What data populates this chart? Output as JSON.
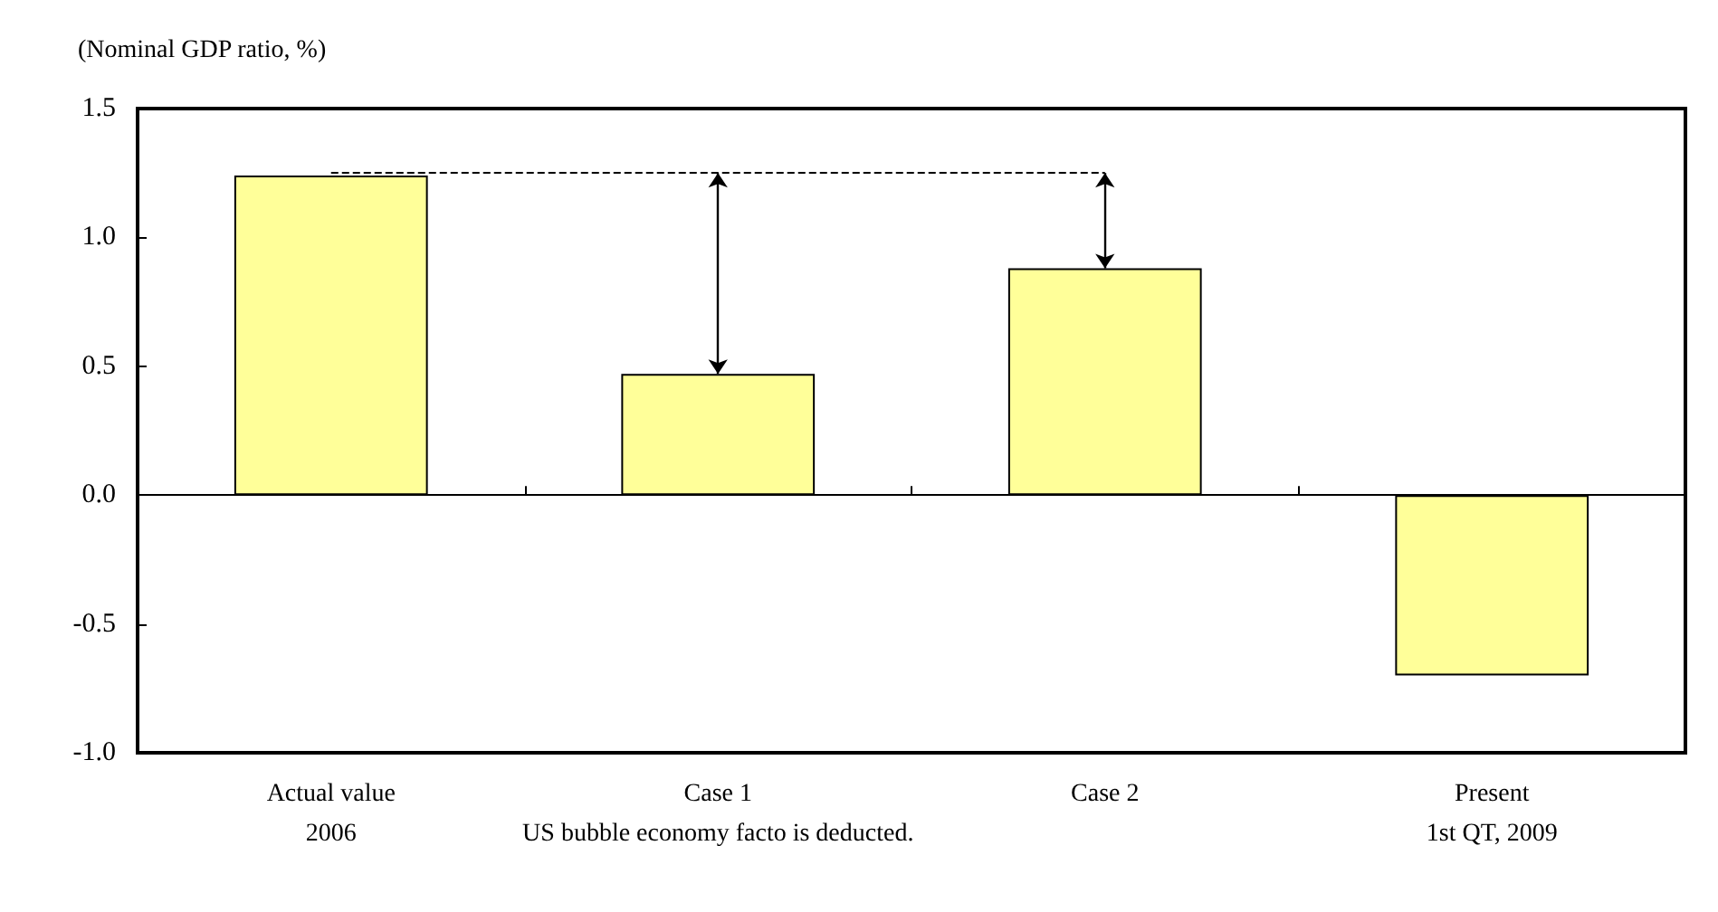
{
  "chart_data": {
    "type": "bar",
    "ylabel": "(Nominal GDP ratio, %)",
    "categories": [
      "Actual value\n2006",
      "Case 1\nUS bubble economy facto is deducted.",
      "Case 2",
      "Present\n1st QT, 2009"
    ],
    "values": [
      1.24,
      0.47,
      0.88,
      -0.7
    ],
    "color": "#ffff99",
    "ylim": [
      -1,
      1.5
    ],
    "yticks": [
      {
        "value": -1,
        "label": "-1.0"
      },
      -0.5,
      {
        "value": 0,
        "label": "0.0"
      },
      0.5,
      {
        "value": 1,
        "label": "1.0"
      },
      1.5
    ],
    "ref_lines": [
      {
        "axis": "y",
        "value": 1.25,
        "line_style": "dashed",
        "color": "#000000"
      }
    ],
    "tick_labels": true
  }
}
